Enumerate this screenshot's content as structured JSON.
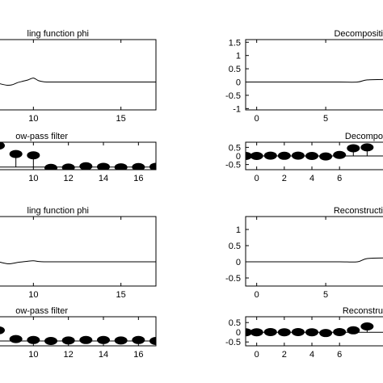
{
  "chart_data": [
    {
      "panel": "left-1",
      "type": "line",
      "title": "ling function phi",
      "xlim": [
        8,
        17
      ],
      "ylim": [
        -1.05,
        1.6
      ],
      "xticks": [
        10,
        15
      ],
      "xtick_labels": [
        "10",
        "15"
      ],
      "yticks": [],
      "ytick_labels": [],
      "x": [
        8,
        8.5,
        8.8,
        9.1,
        9.4,
        9.7,
        10.0,
        10.3,
        10.6,
        11,
        12,
        13,
        14,
        15,
        16,
        17
      ],
      "y": [
        -0.05,
        -0.12,
        -0.1,
        -0.02,
        0.03,
        0.08,
        0.15,
        0.05,
        0.01,
        0.0,
        0.0,
        0.0,
        0.0,
        0.0,
        0.0,
        0.0
      ]
    },
    {
      "panel": "right-1",
      "type": "line",
      "title": "Decompositi",
      "xlim": [
        -0.8,
        9.5
      ],
      "ylim": [
        -1.05,
        1.6
      ],
      "xticks": [
        0,
        5
      ],
      "xtick_labels": [
        "0",
        "5"
      ],
      "yticks": [
        1.5,
        1,
        0.5,
        0,
        -0.5,
        -1
      ],
      "ytick_labels": [
        "1.5",
        "1",
        "0.5",
        "0",
        "-0.5",
        "-1"
      ],
      "x": [
        -0.8,
        0,
        2,
        4,
        6,
        7.3,
        8.0,
        9.5
      ],
      "y": [
        0,
        0,
        0,
        0,
        0,
        0,
        0.08,
        0.1
      ]
    },
    {
      "panel": "left-2",
      "type": "scatter",
      "style": "stem",
      "title": "ow-pass filter",
      "xlim": [
        8,
        17
      ],
      "ylim": [
        -0.1,
        0.95
      ],
      "xticks": [
        10,
        12,
        14,
        16
      ],
      "xtick_labels": [
        "10",
        "12",
        "14",
        "16"
      ],
      "yticks": [],
      "ytick_labels": [],
      "x": [
        8,
        9,
        10,
        11,
        12,
        13,
        14,
        15,
        16,
        17
      ],
      "y": [
        0.82,
        0.5,
        0.45,
        -0.03,
        -0.02,
        0.03,
        0.01,
        -0.01,
        0.0,
        0.01
      ]
    },
    {
      "panel": "right-2",
      "type": "scatter",
      "style": "stem",
      "title": "Decompo",
      "xlim": [
        -0.8,
        9.5
      ],
      "ylim": [
        -0.8,
        0.8
      ],
      "xticks": [
        0,
        2,
        4,
        6
      ],
      "xtick_labels": [
        "0",
        "2",
        "4",
        "6"
      ],
      "yticks": [
        0.5,
        0,
        -0.5
      ],
      "ytick_labels": [
        "0.5",
        "0",
        "-0.5"
      ],
      "x": [
        -0.8,
        0,
        1,
        2,
        3,
        4,
        5,
        6,
        7,
        8
      ],
      "y": [
        0.0,
        0.0,
        0.02,
        0.01,
        0.02,
        0.0,
        -0.03,
        0.06,
        0.45,
        0.5
      ]
    },
    {
      "panel": "left-3",
      "type": "line",
      "title": "ling function phi",
      "xlim": [
        8,
        17
      ],
      "ylim": [
        -0.75,
        1.4
      ],
      "xticks": [
        10,
        15
      ],
      "xtick_labels": [
        "10",
        "15"
      ],
      "yticks": [],
      "ytick_labels": [],
      "x": [
        8,
        8.5,
        8.8,
        9.1,
        9.4,
        9.7,
        10.0,
        10.3,
        10.6,
        11,
        12,
        13,
        14,
        15,
        16,
        17
      ],
      "y": [
        0.0,
        -0.06,
        -0.05,
        -0.02,
        0.0,
        0.02,
        0.03,
        0.01,
        0.0,
        0.0,
        0.0,
        0.0,
        0.0,
        0.0,
        0.0,
        0.0
      ]
    },
    {
      "panel": "right-3",
      "type": "line",
      "title": "Reconstructi",
      "xlim": [
        -0.8,
        9.5
      ],
      "ylim": [
        -0.75,
        1.4
      ],
      "xticks": [
        0,
        5
      ],
      "xtick_labels": [
        "0",
        "5"
      ],
      "yticks": [
        1,
        0.5,
        0,
        -0.5
      ],
      "ytick_labels": [
        "1",
        "0.5",
        "0",
        "-0.5"
      ],
      "x": [
        -0.8,
        0,
        2,
        4,
        6,
        7.3,
        8.0,
        9.5
      ],
      "y": [
        0,
        0,
        0,
        0,
        0,
        0,
        0.1,
        0.12
      ]
    },
    {
      "panel": "left-4",
      "type": "scatter",
      "style": "stem",
      "title": "ow-pass filter",
      "xlim": [
        8,
        17
      ],
      "ylim": [
        -0.1,
        0.5
      ],
      "xticks": [
        10,
        12,
        14,
        16
      ],
      "xtick_labels": [
        "10",
        "12",
        "14",
        "16"
      ],
      "yticks": [],
      "ytick_labels": [],
      "x": [
        8,
        9,
        10,
        11,
        12,
        13,
        14,
        15,
        16,
        17
      ],
      "y": [
        0.22,
        0.04,
        0.02,
        0.0,
        0.01,
        0.02,
        0.02,
        0.01,
        0.02,
        0.0
      ]
    },
    {
      "panel": "right-4",
      "type": "scatter",
      "style": "stem",
      "title": "Reconstru",
      "xlim": [
        -0.8,
        9.5
      ],
      "ylim": [
        -0.7,
        0.8
      ],
      "xticks": [
        0,
        2,
        4,
        6
      ],
      "xtick_labels": [
        "0",
        "2",
        "4",
        "6"
      ],
      "yticks": [
        0.5,
        0,
        -0.5
      ],
      "ytick_labels": [
        "0.5",
        "0",
        "-0.5"
      ],
      "x": [
        -0.8,
        0,
        1,
        2,
        3,
        4,
        5,
        6,
        7,
        8
      ],
      "y": [
        0.0,
        0.0,
        0.01,
        0.0,
        0.01,
        0.0,
        -0.04,
        0.01,
        0.1,
        0.3
      ]
    }
  ]
}
